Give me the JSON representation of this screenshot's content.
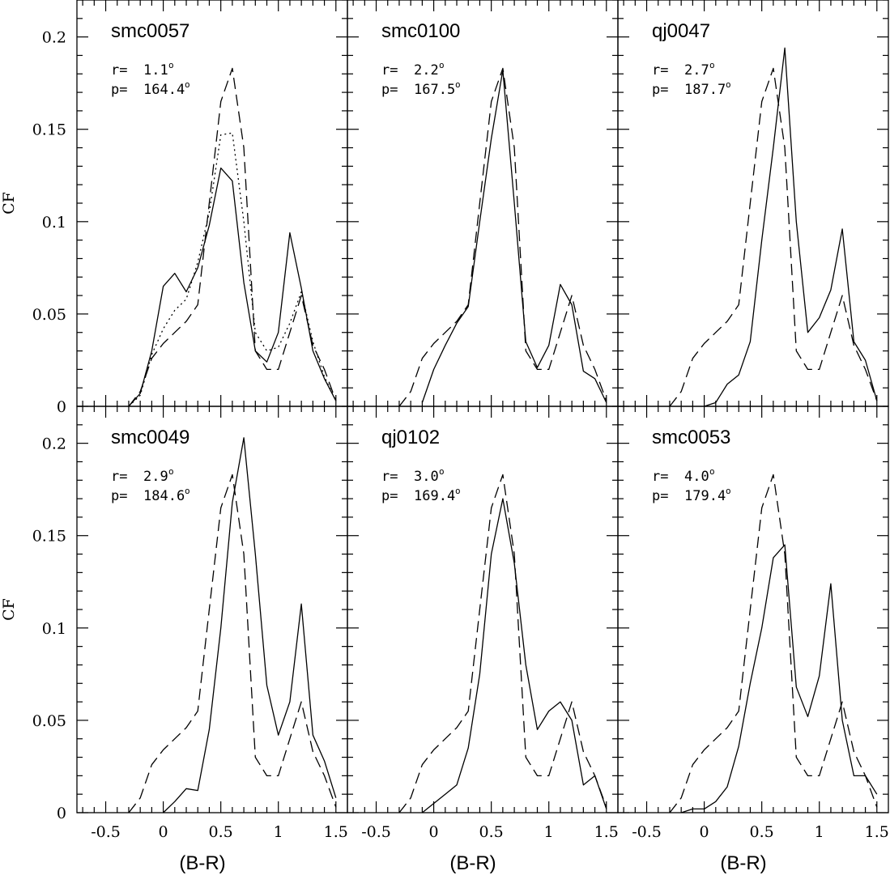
{
  "chart_data": {
    "type": "line",
    "layout": "2x3 grid of panels sharing axes",
    "xlabel": "(B-R)",
    "ylabel": "CF",
    "xlim": [
      -0.75,
      1.6
    ],
    "ylim": [
      0,
      0.22
    ],
    "xticks": [
      -0.5,
      0,
      0.5,
      1,
      1.5
    ],
    "xtick_labels": [
      "-0.5",
      "0",
      "0.5",
      "1",
      "1.5"
    ],
    "yticks": [
      0,
      0.05,
      0.1,
      0.15,
      0.2
    ],
    "ytick_labels": [
      "0",
      "0.05",
      "0.1",
      "0.15",
      "0.2"
    ],
    "reference_series": {
      "style": "dashed",
      "x": [
        -0.3,
        -0.2,
        -0.1,
        0,
        0.1,
        0.2,
        0.3,
        0.4,
        0.5,
        0.6,
        0.7,
        0.8,
        0.9,
        1.0,
        1.1,
        1.2,
        1.3,
        1.4,
        1.5
      ],
      "y": [
        0,
        0.008,
        0.026,
        0.034,
        0.04,
        0.046,
        0.055,
        0.11,
        0.165,
        0.183,
        0.14,
        0.03,
        0.02,
        0.02,
        0.04,
        0.06,
        0.033,
        0.02,
        0.003
      ]
    },
    "panels": [
      {
        "title": "smc0057",
        "r_label": "r=",
        "r_value": "1.1",
        "p_label": "p=",
        "p_value": "164.4",
        "degree": "o",
        "series": [
          {
            "style": "solid",
            "x": [
              -0.3,
              -0.2,
              -0.1,
              0,
              0.1,
              0.2,
              0.3,
              0.4,
              0.5,
              0.6,
              0.7,
              0.8,
              0.9,
              1.0,
              1.1,
              1.2,
              1.3,
              1.4,
              1.5
            ],
            "y": [
              0,
              0.007,
              0.03,
              0.065,
              0.072,
              0.062,
              0.075,
              0.098,
              0.129,
              0.122,
              0.067,
              0.03,
              0.024,
              0.04,
              0.094,
              0.064,
              0.03,
              0.015,
              0.003
            ]
          },
          {
            "style": "dotted",
            "x": [
              -0.3,
              -0.2,
              -0.1,
              0,
              0.1,
              0.2,
              0.3,
              0.4,
              0.5,
              0.6,
              0.7,
              0.8,
              0.9,
              1.0,
              1.1,
              1.2,
              1.3,
              1.4,
              1.5
            ],
            "y": [
              0,
              0.006,
              0.028,
              0.042,
              0.052,
              0.058,
              0.078,
              0.105,
              0.147,
              0.148,
              0.1,
              0.04,
              0.03,
              0.032,
              0.045,
              0.062,
              0.035,
              0.016,
              0.003
            ]
          }
        ]
      },
      {
        "title": "smc0100",
        "r_label": "r=",
        "r_value": "2.2",
        "p_label": "p=",
        "p_value": "167.5",
        "degree": "o",
        "series": [
          {
            "style": "solid",
            "x": [
              -0.1,
              0,
              0.1,
              0.2,
              0.3,
              0.4,
              0.5,
              0.6,
              0.7,
              0.8,
              0.9,
              1.0,
              1.1,
              1.2,
              1.3,
              1.4,
              1.5
            ],
            "y": [
              0.002,
              0.02,
              0.033,
              0.045,
              0.054,
              0.1,
              0.145,
              0.182,
              0.11,
              0.035,
              0.021,
              0.033,
              0.066,
              0.055,
              0.019,
              0.015,
              0.002
            ]
          }
        ]
      },
      {
        "title": "qj0047",
        "r_label": "r=",
        "r_value": "2.7",
        "p_label": "p=",
        "p_value": "187.7",
        "degree": "o",
        "series": [
          {
            "style": "solid",
            "x": [
              0,
              0.1,
              0.2,
              0.3,
              0.4,
              0.5,
              0.6,
              0.7,
              0.8,
              0.9,
              1.0,
              1.1,
              1.2,
              1.3,
              1.4,
              1.5
            ],
            "y": [
              0,
              0.002,
              0.012,
              0.017,
              0.035,
              0.09,
              0.14,
              0.194,
              0.1,
              0.04,
              0.048,
              0.063,
              0.096,
              0.035,
              0.025,
              0.003
            ]
          }
        ]
      },
      {
        "title": "smc0049",
        "r_label": "r=",
        "r_value": "2.9",
        "p_label": "p=",
        "p_value": "184.6",
        "degree": "o",
        "series": [
          {
            "style": "solid",
            "x": [
              0,
              0.1,
              0.2,
              0.3,
              0.4,
              0.5,
              0.6,
              0.7,
              0.8,
              0.9,
              1.0,
              1.1,
              1.2,
              1.3,
              1.4,
              1.5
            ],
            "y": [
              0,
              0.006,
              0.013,
              0.012,
              0.045,
              0.1,
              0.168,
              0.203,
              0.14,
              0.069,
              0.042,
              0.06,
              0.113,
              0.042,
              0.028,
              0.008
            ]
          }
        ]
      },
      {
        "title": "qj0102",
        "r_label": "r=",
        "r_value": "3.0",
        "p_label": "p=",
        "p_value": "169.4",
        "degree": "o",
        "series": [
          {
            "style": "solid",
            "x": [
              -0.1,
              0,
              0.1,
              0.2,
              0.3,
              0.4,
              0.5,
              0.6,
              0.7,
              0.8,
              0.9,
              1.0,
              1.1,
              1.2,
              1.3,
              1.4,
              1.5
            ],
            "y": [
              0,
              0.005,
              0.01,
              0.015,
              0.035,
              0.075,
              0.14,
              0.17,
              0.135,
              0.08,
              0.045,
              0.055,
              0.06,
              0.05,
              0.015,
              0.02,
              0.002
            ]
          }
        ]
      },
      {
        "title": "smc0053",
        "r_label": "r=",
        "r_value": "4.0",
        "p_label": "p=",
        "p_value": "179.4",
        "degree": "o",
        "series": [
          {
            "style": "solid",
            "x": [
              -0.2,
              -0.1,
              0,
              0.1,
              0.2,
              0.3,
              0.4,
              0.5,
              0.6,
              0.7,
              0.8,
              0.9,
              1.0,
              1.1,
              1.2,
              1.3,
              1.4,
              1.5
            ],
            "y": [
              0,
              0.002,
              0.002,
              0.006,
              0.014,
              0.036,
              0.07,
              0.1,
              0.138,
              0.145,
              0.068,
              0.052,
              0.074,
              0.124,
              0.05,
              0.02,
              0.02,
              0.01
            ]
          }
        ]
      }
    ]
  }
}
